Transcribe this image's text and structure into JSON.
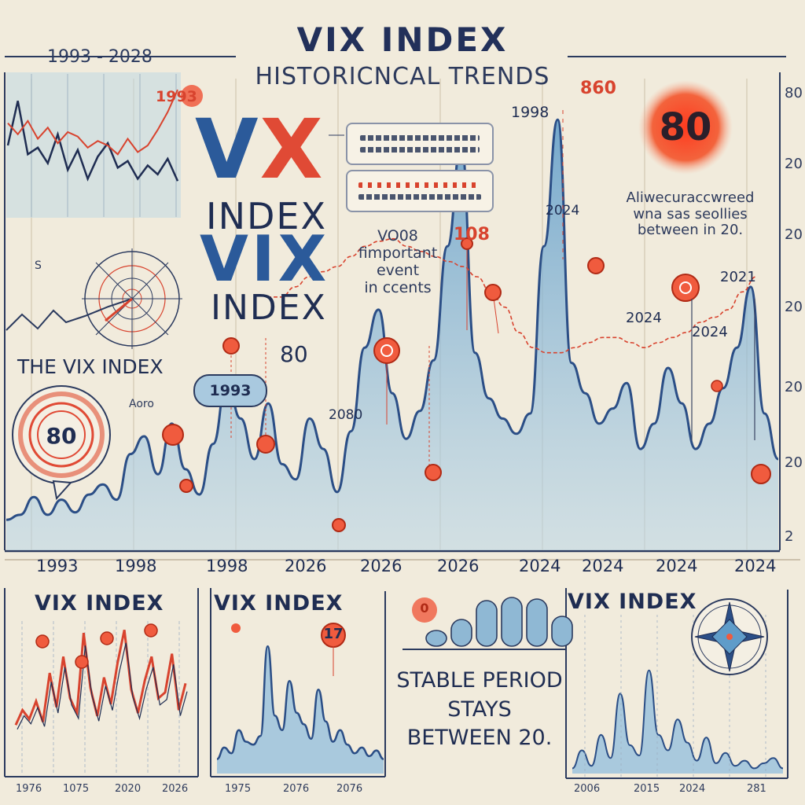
{
  "header": {
    "title": "VIX INDEX",
    "subtitle": "HISTORICNCAL TRENDS",
    "range_label": "1993 - 2028"
  },
  "center_text": {
    "vx_v": "V",
    "vx_x": "X",
    "index_1": "INDEX",
    "vix": "VIX",
    "index_2": "INDEX"
  },
  "labels": {
    "vix_index_label": "THE VIX INDEX",
    "badge_80": "80",
    "pill_1993": "1993",
    "tag_1993_top": "1993",
    "label_80_center": "80",
    "label_2080": "2080",
    "label_108": "108",
    "label_1998_top": "1998",
    "label_2024_top": "2024",
    "label_860": "860",
    "big_circle": "80",
    "label_2024_mid": "2024",
    "label_2024_right": "2024",
    "label_2021": "2021",
    "small_aoro": "Aoro",
    "small_s": "S"
  },
  "notes": {
    "event_note": [
      "VO08",
      "fimportant",
      "event",
      "in ccents"
    ],
    "right_note": [
      "Aliwecuraccwreed",
      "wna sas seollies",
      "between in 20."
    ]
  },
  "right_axis": [
    "80",
    "20",
    "20",
    "20",
    "20",
    "20",
    "2"
  ],
  "stable_text": [
    "STABLE PERIOD",
    "STAYS",
    "BETWEEN 20."
  ],
  "chart_data": [
    {
      "type": "area",
      "title": "VIX INDEX",
      "subtitle": "HISTORICNCAL TRENDS",
      "x_tick_labels": [
        "1993",
        "1998",
        "1998",
        "2026",
        "2026",
        "2026",
        "2024",
        "2024",
        "2024",
        "2024"
      ],
      "series": [
        {
          "name": "",
          "values": [
            12,
            14,
            21,
            14,
            20,
            15,
            22,
            26,
            20,
            38,
            45,
            30,
            50,
            32,
            22,
            42,
            67,
            52,
            36,
            58,
            34,
            28,
            52,
            40,
            23,
            47,
            80,
            95,
            62,
            44,
            55,
            75,
            120,
            160,
            78,
            60,
            52,
            46,
            54,
            120,
            170,
            74,
            62,
            50,
            56,
            66,
            40,
            50,
            72,
            58,
            40,
            50,
            64,
            80,
            104,
            54,
            36
          ]
        },
        {
          "name": "",
          "values": [
            100,
            100,
            104,
            108,
            110,
            112,
            116,
            120,
            122,
            123,
            120,
            118,
            116,
            114,
            112,
            108,
            102,
            96,
            86,
            80,
            78,
            78,
            80,
            82,
            84,
            84,
            82,
            80,
            82,
            84,
            86,
            90,
            92,
            95,
            102,
            108
          ]
        }
      ]
    },
    {
      "type": "line",
      "title": "VIX INDEX",
      "x_tick_labels": [
        "1976",
        "1075",
        "2020",
        "2026"
      ],
      "series": [
        {
          "name": "",
          "values": [
            20,
            30,
            24,
            36,
            22,
            55,
            32,
            66,
            38,
            28,
            82,
            45,
            26,
            52,
            34,
            62,
            84,
            44,
            28,
            50,
            66,
            38,
            42,
            68,
            30,
            48
          ]
        }
      ]
    },
    {
      "type": "area",
      "title": "VIX INDEX",
      "x_tick_labels": [
        "1975",
        "2076",
        "2076"
      ],
      "series": [
        {
          "name": "",
          "values": [
            10,
            18,
            14,
            30,
            22,
            20,
            26,
            88,
            40,
            30,
            64,
            42,
            34,
            24,
            58,
            36,
            22,
            30,
            20,
            14,
            18,
            12,
            16,
            10
          ]
        }
      ]
    },
    {
      "type": "bar",
      "title": "",
      "x_tick_labels": [],
      "series": [
        {
          "name": "",
          "values": [
            20,
            34,
            58,
            62,
            60,
            38
          ]
        }
      ]
    },
    {
      "type": "area",
      "title": "VIX INDEX",
      "x_tick_labels": [
        "2006",
        "2015",
        "2024",
        "281"
      ],
      "series": [
        {
          "name": "",
          "values": [
            4,
            18,
            6,
            30,
            12,
            62,
            22,
            14,
            80,
            30,
            18,
            42,
            24,
            10,
            28,
            8,
            16,
            6,
            10,
            4,
            8,
            12,
            4
          ]
        }
      ]
    }
  ],
  "inset_topleft": {
    "series_blue": [
      60,
      100,
      52,
      58,
      44,
      70,
      38,
      56,
      30,
      50,
      62,
      40,
      46,
      30,
      42,
      34,
      48,
      28
    ],
    "series_red": [
      80,
      70,
      82,
      66,
      76,
      62,
      72,
      68,
      58,
      64,
      60,
      52,
      66,
      54,
      60,
      74,
      90,
      110
    ]
  },
  "x_ticks_main": [
    "1993",
    "1998",
    "1998",
    "2026",
    "2026",
    "2026",
    "2024",
    "2024",
    "2024",
    "2024"
  ],
  "bottom_ticks": {
    "panel1": [
      "1976",
      "1075",
      "2020",
      "2026"
    ],
    "panel2": [
      "1975",
      "2076",
      "2076"
    ],
    "panel4": [
      "2006",
      "2015",
      "2024",
      "281"
    ]
  },
  "small_badges": {
    "p1": "",
    "p2": "17",
    "p3": "0"
  },
  "colors": {
    "background": "#f1ebdc",
    "navy": "#1f2d52",
    "blue_line": "#2b4e86",
    "blue_fill": "#7fb2d6",
    "red": "#e04a35",
    "grid": "#b7a78f"
  }
}
